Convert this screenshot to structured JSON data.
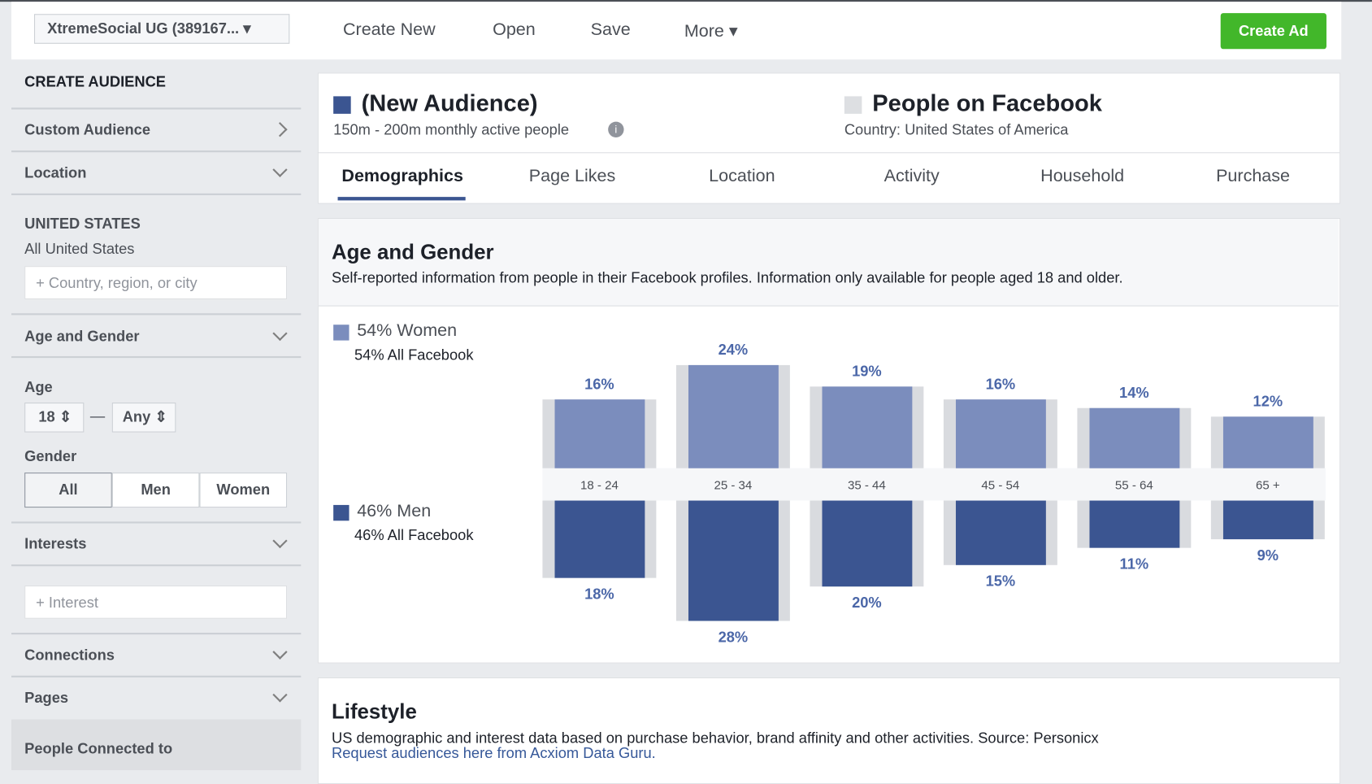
{
  "toolbar": {
    "account": "XtremeSocial UG (389167...",
    "buttons": [
      "Create New",
      "Open",
      "Save",
      "More"
    ],
    "create_ad": "Create Ad"
  },
  "sidebar": {
    "title": "CREATE AUDIENCE",
    "custom_audience": "Custom Audience",
    "location": "Location",
    "country": "UNITED STATES",
    "country_sub": "All United States",
    "location_placeholder": "Country, region, or city",
    "age_and_gender": "Age and Gender",
    "age": "Age",
    "age_min": "18",
    "age_max": "Any",
    "gender": "Gender",
    "gender_options": [
      "All",
      "Men",
      "Women"
    ],
    "interests": "Interests",
    "interest_placeholder": "Interest",
    "connections": "Connections",
    "pages": "Pages",
    "people_connected": "People Connected to"
  },
  "header": {
    "audience": "(New Audience)",
    "audience_size": "150m - 200m monthly active people",
    "comparison": "People on Facebook",
    "comparison_country": "Country: United States of America"
  },
  "tabs": [
    "Demographics",
    "Page Likes",
    "Location",
    "Activity",
    "Household",
    "Purchase"
  ],
  "chart_data": {
    "type": "bar",
    "title": "Age and Gender",
    "subtitle": "Self-reported information from people in their Facebook profiles. Information only available for people aged 18 and older.",
    "categories": [
      "18 - 24",
      "25 - 34",
      "35 - 44",
      "45 - 54",
      "55 - 64",
      "65 +"
    ],
    "series": [
      {
        "name": "54% Women",
        "comparison": "54% All Facebook",
        "color": "#7b8dbd",
        "values": [
          16,
          24,
          19,
          16,
          14,
          12
        ],
        "value_labels": [
          "16%",
          "24%",
          "19%",
          "16%",
          "14%",
          "12%"
        ]
      },
      {
        "name": "46% Men",
        "comparison": "46% All Facebook",
        "color": "#3b5591",
        "values": [
          18,
          28,
          20,
          15,
          11,
          9
        ],
        "value_labels": [
          "18%",
          "28%",
          "20%",
          "15%",
          "11%",
          "9%"
        ]
      }
    ]
  },
  "lifestyle": {
    "title": "Lifestyle",
    "text": "US demographic and interest data based on purchase behavior, brand affinity and other activities. Source: Personicx",
    "link": "Request audiences here from Acxiom Data Guru."
  }
}
